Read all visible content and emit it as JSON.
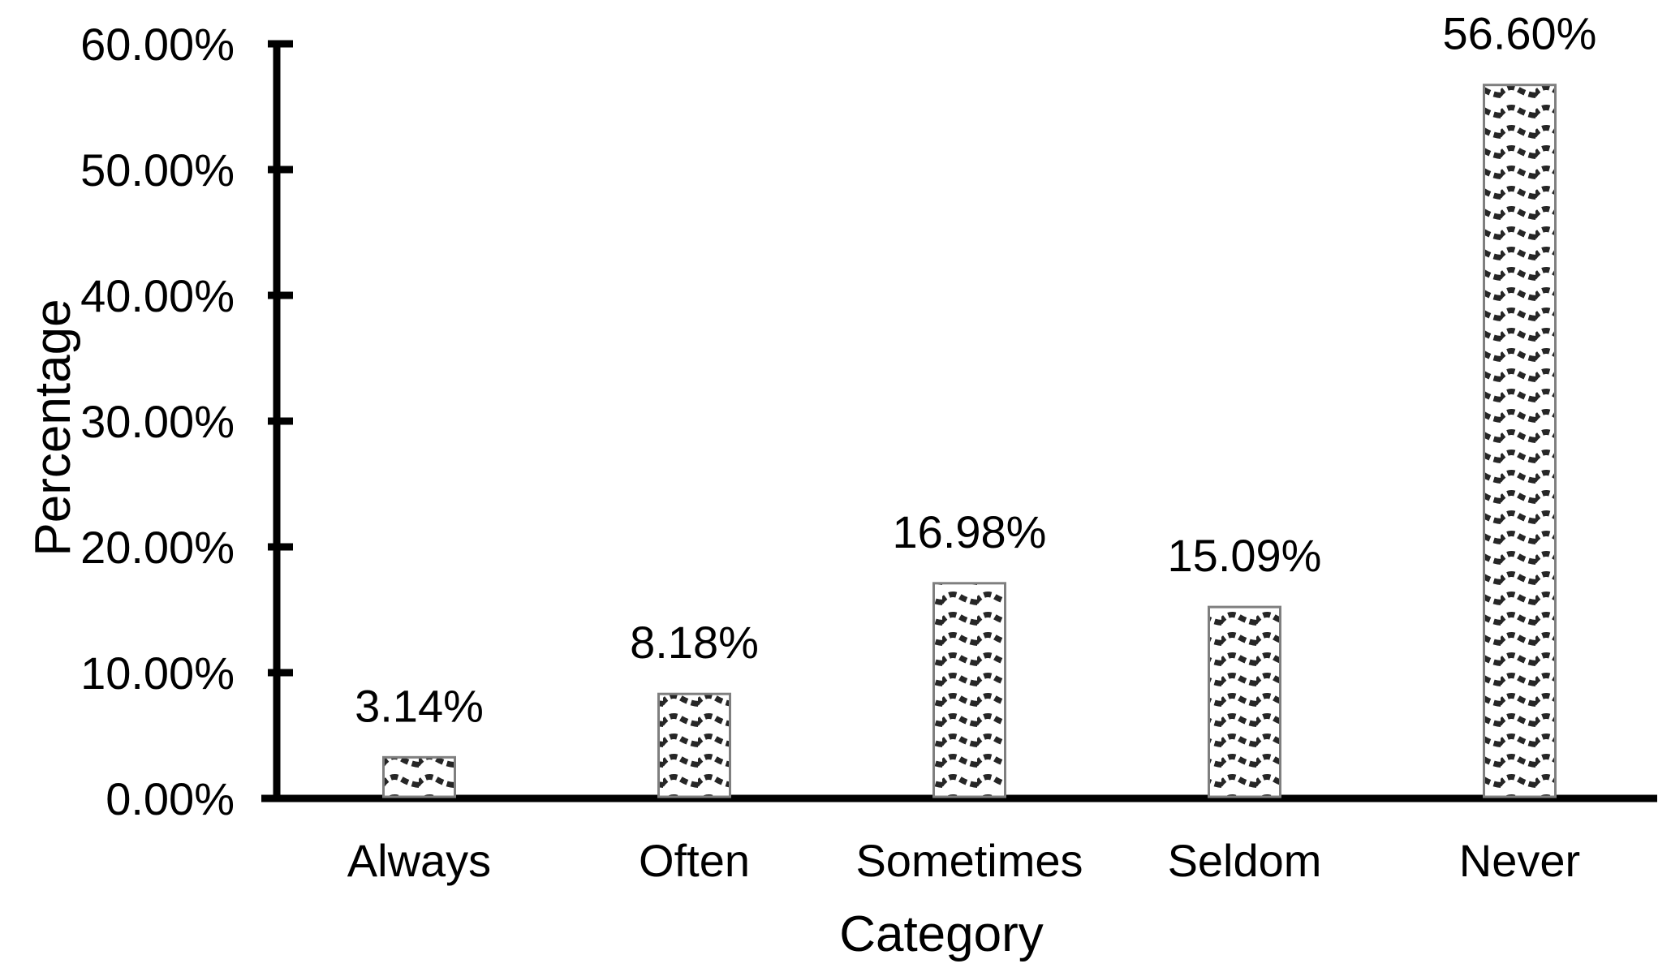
{
  "chart_data": {
    "type": "bar",
    "title": "",
    "categories": [
      "Always",
      "Often",
      "Sometimes",
      "Seldom",
      "Never"
    ],
    "values": [
      3.14,
      8.18,
      16.98,
      15.09,
      56.6
    ],
    "bar_labels": [
      "3.14%",
      "8.18%",
      "16.98%",
      "15.09%",
      "56.60%"
    ],
    "xlabel": "Category",
    "ylabel": "Percentage",
    "ylim": [
      0,
      60
    ],
    "ytick_interval": 10,
    "ytick_labels": [
      "0.00%",
      "10.00%",
      "20.00%",
      "30.00%",
      "40.00%",
      "50.00%",
      "60.00%"
    ],
    "grid": false,
    "legend": "none",
    "bar_fill_style": "wave-pattern",
    "colors": {
      "background": "#ffffff",
      "axis": "#000000",
      "text": "#000000",
      "bar_pattern": "#262626",
      "bar_background": "#ffffff",
      "bar_border": "#7f7f7f"
    }
  }
}
